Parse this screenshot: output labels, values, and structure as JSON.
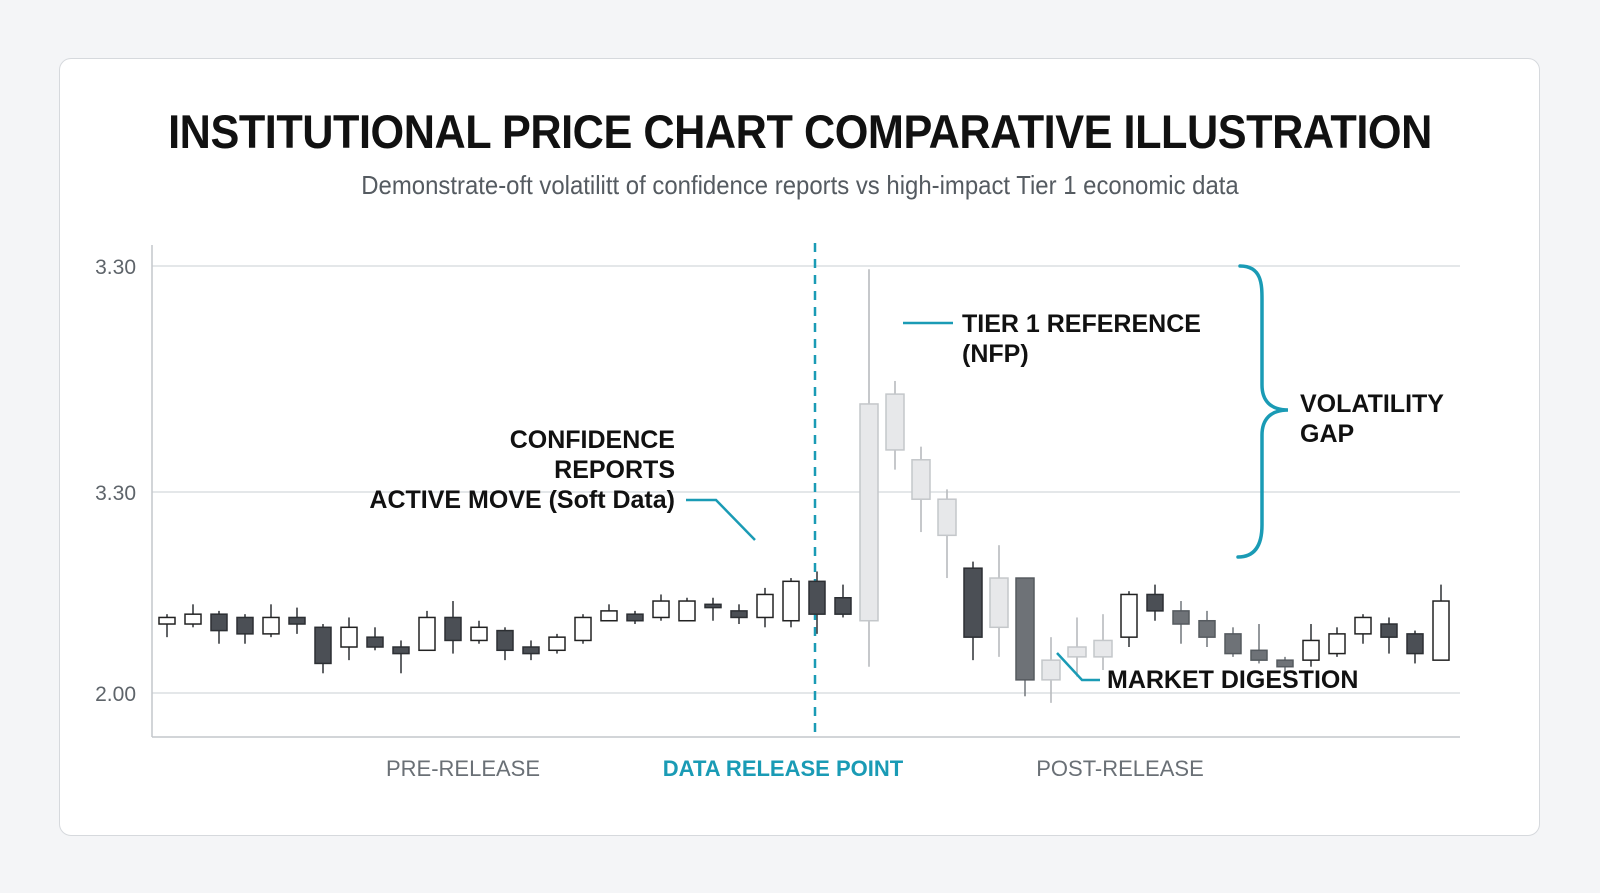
{
  "header": {
    "title": "INSTITUTIONAL PRICE CHART COMPARATIVE ILLUSTRATION",
    "subtitle": "Demonstrate-oft volatilitt of confidence reports vs high-impact Tier 1 economic data"
  },
  "colors": {
    "accent": "#1a9bb5",
    "bull": "#ffffff",
    "bear_dark": "#4b4f55",
    "bear_mid": "#6e7277",
    "light_fill": "#e7e8ea",
    "wick": "#333333",
    "grid": "#dcdfe2"
  },
  "chart_data": {
    "type": "candlestick",
    "title": "INSTITUTIONAL PRICE CHART COMPARATIVE ILLUSTRATION",
    "y_tick_labels": [
      "3.30",
      "3.30",
      "2.00"
    ],
    "grid": true,
    "x_sections": [
      {
        "label": "PRE-RELEASE",
        "accent": false
      },
      {
        "label": "DATA RELEASE POINT",
        "accent": true
      },
      {
        "label": "POST-RELEASE",
        "accent": false
      }
    ],
    "release_index": 25,
    "annotations": {
      "confidence": [
        "CONFIDENCE",
        "REPORTS",
        "ACTIVE MOVE (Soft Data)"
      ],
      "tier1": [
        "TIER 1 REFERENCE",
        "(NFP)"
      ],
      "volatility": [
        "VOLATILITY",
        "GAP"
      ],
      "digestion": "MARKET DIGESTION"
    },
    "candles": [
      {
        "o": 2.21,
        "h": 2.24,
        "l": 2.17,
        "c": 2.23,
        "s": "bull"
      },
      {
        "o": 2.21,
        "h": 2.27,
        "l": 2.2,
        "c": 2.24,
        "s": "bull"
      },
      {
        "o": 2.24,
        "h": 2.25,
        "l": 2.15,
        "c": 2.19,
        "s": "bear"
      },
      {
        "o": 2.23,
        "h": 2.24,
        "l": 2.15,
        "c": 2.18,
        "s": "bear"
      },
      {
        "o": 2.18,
        "h": 2.27,
        "l": 2.17,
        "c": 2.23,
        "s": "bull"
      },
      {
        "o": 2.23,
        "h": 2.26,
        "l": 2.18,
        "c": 2.21,
        "s": "bear"
      },
      {
        "o": 2.2,
        "h": 2.21,
        "l": 2.06,
        "c": 2.09,
        "s": "bear"
      },
      {
        "o": 2.14,
        "h": 2.23,
        "l": 2.1,
        "c": 2.2,
        "s": "bull"
      },
      {
        "o": 2.17,
        "h": 2.2,
        "l": 2.13,
        "c": 2.14,
        "s": "bear"
      },
      {
        "o": 2.14,
        "h": 2.16,
        "l": 2.06,
        "c": 2.12,
        "s": "bear"
      },
      {
        "o": 2.13,
        "h": 2.25,
        "l": 2.13,
        "c": 2.23,
        "s": "bull"
      },
      {
        "o": 2.23,
        "h": 2.28,
        "l": 2.12,
        "c": 2.16,
        "s": "bear"
      },
      {
        "o": 2.16,
        "h": 2.22,
        "l": 2.15,
        "c": 2.2,
        "s": "bull"
      },
      {
        "o": 2.19,
        "h": 2.2,
        "l": 2.1,
        "c": 2.13,
        "s": "bear"
      },
      {
        "o": 2.14,
        "h": 2.16,
        "l": 2.1,
        "c": 2.12,
        "s": "bear"
      },
      {
        "o": 2.13,
        "h": 2.18,
        "l": 2.12,
        "c": 2.17,
        "s": "bull"
      },
      {
        "o": 2.16,
        "h": 2.24,
        "l": 2.15,
        "c": 2.23,
        "s": "bull"
      },
      {
        "o": 2.22,
        "h": 2.27,
        "l": 2.22,
        "c": 2.25,
        "s": "bull"
      },
      {
        "o": 2.24,
        "h": 2.25,
        "l": 2.21,
        "c": 2.22,
        "s": "bear"
      },
      {
        "o": 2.23,
        "h": 2.3,
        "l": 2.22,
        "c": 2.28,
        "s": "bull"
      },
      {
        "o": 2.22,
        "h": 2.29,
        "l": 2.22,
        "c": 2.28,
        "s": "bull"
      },
      {
        "o": 2.26,
        "h": 2.29,
        "l": 2.22,
        "c": 2.27,
        "s": "bear"
      },
      {
        "o": 2.25,
        "h": 2.27,
        "l": 2.21,
        "c": 2.23,
        "s": "bear"
      },
      {
        "o": 2.23,
        "h": 2.32,
        "l": 2.2,
        "c": 2.3,
        "s": "bull"
      },
      {
        "o": 2.22,
        "h": 2.35,
        "l": 2.2,
        "c": 2.34,
        "s": "bull"
      },
      {
        "o": 2.34,
        "h": 2.37,
        "l": 2.18,
        "c": 2.24,
        "s": "bear"
      },
      {
        "o": 2.29,
        "h": 2.33,
        "l": 2.23,
        "c": 2.24,
        "s": "bear"
      },
      {
        "o": 2.22,
        "h": 3.29,
        "l": 2.08,
        "c": 2.88,
        "s": "light"
      },
      {
        "o": 2.74,
        "h": 2.95,
        "l": 2.68,
        "c": 2.91,
        "s": "light"
      },
      {
        "o": 2.71,
        "h": 2.75,
        "l": 2.49,
        "c": 2.59,
        "s": "light"
      },
      {
        "o": 2.59,
        "h": 2.62,
        "l": 2.35,
        "c": 2.48,
        "s": "light"
      },
      {
        "o": 2.38,
        "h": 2.4,
        "l": 2.1,
        "c": 2.17,
        "s": "bear"
      },
      {
        "o": 2.35,
        "h": 2.45,
        "l": 2.11,
        "c": 2.2,
        "s": "light"
      },
      {
        "o": 2.35,
        "h": 2.35,
        "l": 1.99,
        "c": 2.04,
        "s": "bear_mid"
      },
      {
        "o": 2.1,
        "h": 2.17,
        "l": 1.97,
        "c": 2.04,
        "s": "light"
      },
      {
        "o": 2.14,
        "h": 2.23,
        "l": 2.05,
        "c": 2.11,
        "s": "light"
      },
      {
        "o": 2.16,
        "h": 2.24,
        "l": 2.07,
        "c": 2.11,
        "s": "light"
      },
      {
        "o": 2.17,
        "h": 2.31,
        "l": 2.14,
        "c": 2.3,
        "s": "bull"
      },
      {
        "o": 2.3,
        "h": 2.33,
        "l": 2.22,
        "c": 2.25,
        "s": "bear"
      },
      {
        "o": 2.25,
        "h": 2.28,
        "l": 2.15,
        "c": 2.21,
        "s": "bear_mid"
      },
      {
        "o": 2.22,
        "h": 2.25,
        "l": 2.14,
        "c": 2.17,
        "s": "bear_mid"
      },
      {
        "o": 2.18,
        "h": 2.2,
        "l": 2.11,
        "c": 2.12,
        "s": "bear_mid"
      },
      {
        "o": 2.13,
        "h": 2.21,
        "l": 2.09,
        "c": 2.1,
        "s": "bear_mid"
      },
      {
        "o": 2.1,
        "h": 2.11,
        "l": 2.05,
        "c": 2.08,
        "s": "bear_mid"
      },
      {
        "o": 2.1,
        "h": 2.21,
        "l": 2.08,
        "c": 2.16,
        "s": "bull"
      },
      {
        "o": 2.12,
        "h": 2.2,
        "l": 2.11,
        "c": 2.18,
        "s": "bull"
      },
      {
        "o": 2.18,
        "h": 2.24,
        "l": 2.15,
        "c": 2.23,
        "s": "bull"
      },
      {
        "o": 2.21,
        "h": 2.23,
        "l": 2.12,
        "c": 2.17,
        "s": "bear"
      },
      {
        "o": 2.18,
        "h": 2.19,
        "l": 2.09,
        "c": 2.12,
        "s": "bear"
      },
      {
        "o": 2.1,
        "h": 2.33,
        "l": 2.1,
        "c": 2.28,
        "s": "bull"
      }
    ]
  }
}
